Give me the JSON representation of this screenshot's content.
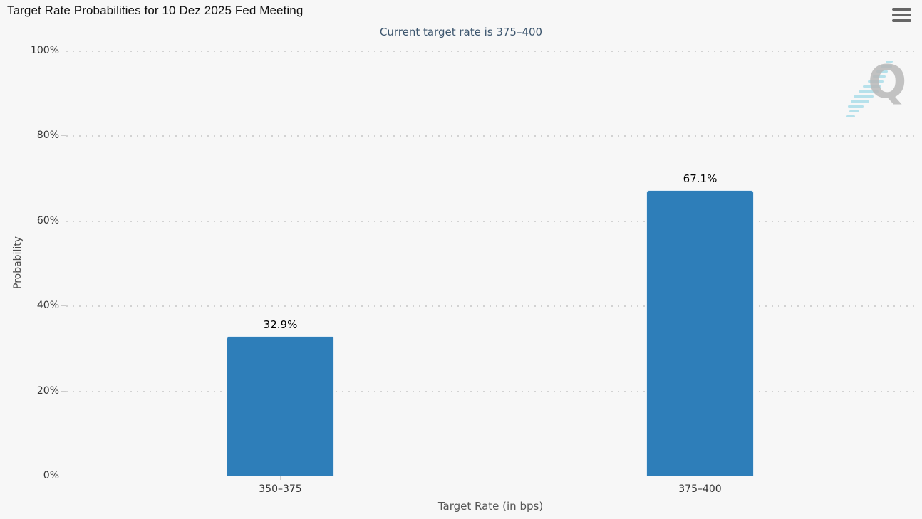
{
  "chart_data": {
    "type": "bar",
    "title": "Target Rate Probabilities for 10 Dez 2025 Fed Meeting",
    "subtitle": "Current target rate is 375–400",
    "categories": [
      "350–375",
      "375–400"
    ],
    "values": [
      32.9,
      67.1
    ],
    "data_labels": [
      "32.9%",
      "67.1%"
    ],
    "xlabel": "Target Rate (in bps)",
    "ylabel": "Probability",
    "ylim": [
      0,
      100
    ],
    "ytick_step": 20,
    "yticks": [
      "0%",
      "20%",
      "40%",
      "60%",
      "80%",
      "100%"
    ],
    "grid": "dotted-horizontal",
    "legend": "none",
    "bar_color": "#2e7eb9",
    "background_color": "#f7f7f7",
    "watermark_letter": "Q",
    "menu_icon": "hamburger-icon"
  }
}
